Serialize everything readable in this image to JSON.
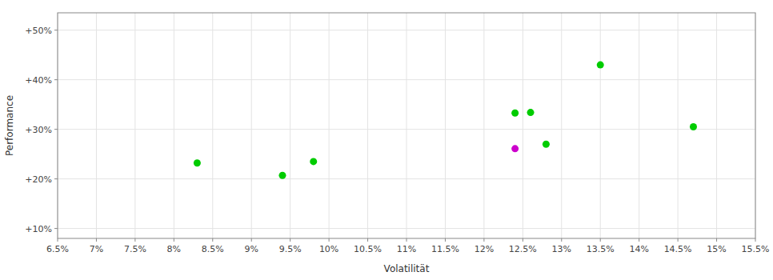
{
  "chart_data": {
    "type": "scatter",
    "xlabel": "Volatilität",
    "ylabel": "Performance",
    "x": [
      0.083,
      0.094,
      0.098,
      0.124,
      0.126,
      0.124,
      0.128,
      0.135,
      0.147
    ],
    "values": [
      0.232,
      0.207,
      0.235,
      0.333,
      0.334,
      0.261,
      0.27,
      0.43,
      0.305
    ],
    "colors": [
      "#00cc00",
      "#00cc00",
      "#00cc00",
      "#00cc00",
      "#00cc00",
      "#cc00cc",
      "#00cc00",
      "#00cc00",
      "#00cc00"
    ],
    "xlim": [
      0.065,
      0.155
    ],
    "ylim": [
      0.08,
      0.535
    ],
    "xticks": [
      {
        "value": 0.065,
        "label": "6.5%"
      },
      {
        "value": 0.07,
        "label": "7%"
      },
      {
        "value": 0.075,
        "label": "7.5%"
      },
      {
        "value": 0.08,
        "label": "8%"
      },
      {
        "value": 0.085,
        "label": "8.5%"
      },
      {
        "value": 0.09,
        "label": "9%"
      },
      {
        "value": 0.095,
        "label": "9.5%"
      },
      {
        "value": 0.1,
        "label": "10%"
      },
      {
        "value": 0.105,
        "label": "10.5%"
      },
      {
        "value": 0.11,
        "label": "11%"
      },
      {
        "value": 0.115,
        "label": "11.5%"
      },
      {
        "value": 0.12,
        "label": "12%"
      },
      {
        "value": 0.125,
        "label": "12.5%"
      },
      {
        "value": 0.13,
        "label": "13%"
      },
      {
        "value": 0.135,
        "label": "13.5%"
      },
      {
        "value": 0.14,
        "label": "14%"
      },
      {
        "value": 0.145,
        "label": "14.5%"
      },
      {
        "value": 0.15,
        "label": "15%"
      },
      {
        "value": 0.155,
        "label": "15.5%"
      }
    ],
    "yticks": [
      {
        "value": 0.1,
        "label": "+10%"
      },
      {
        "value": 0.2,
        "label": "+20%"
      },
      {
        "value": 0.3,
        "label": "+30%"
      },
      {
        "value": 0.4,
        "label": "+40%"
      },
      {
        "value": 0.5,
        "label": "+50%"
      }
    ],
    "grid": true
  }
}
